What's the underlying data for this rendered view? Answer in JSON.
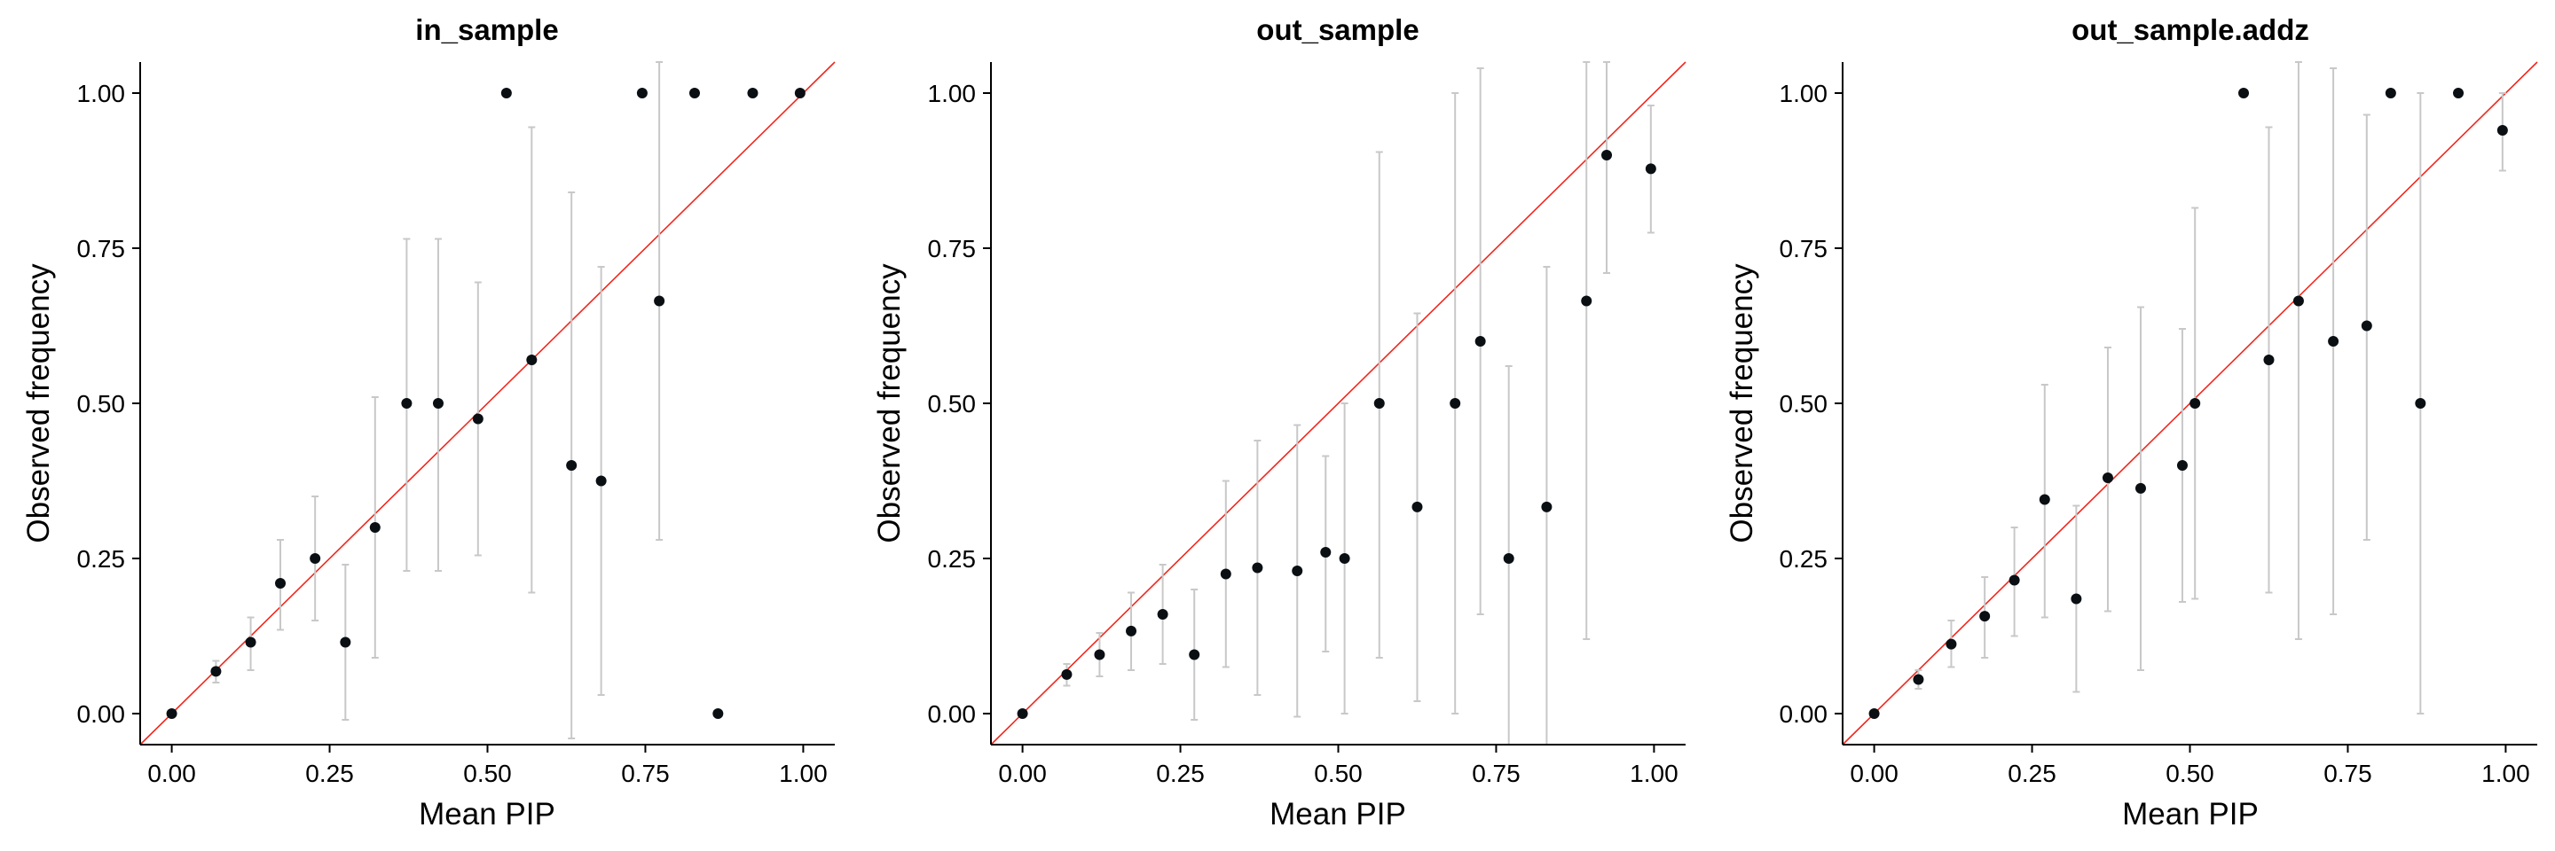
{
  "chart_data": [
    {
      "type": "scatter",
      "title": "in_sample",
      "xlabel": "Mean PIP",
      "ylabel": "Observed frequency",
      "xlim": [
        -0.05,
        1.05
      ],
      "ylim": [
        -0.05,
        1.05
      ],
      "xticks": [
        "0.00",
        "0.25",
        "0.50",
        "0.75",
        "1.00"
      ],
      "yticks": [
        "0.00",
        "0.25",
        "0.50",
        "0.75",
        "1.00"
      ],
      "reference_line": "y = x",
      "points": [
        {
          "x": 0.0,
          "y": 0.0,
          "lo": 0.0,
          "hi": 0.0
        },
        {
          "x": 0.07,
          "y": 0.068,
          "lo": 0.05,
          "hi": 0.085
        },
        {
          "x": 0.125,
          "y": 0.115,
          "lo": 0.07,
          "hi": 0.155
        },
        {
          "x": 0.172,
          "y": 0.21,
          "lo": 0.135,
          "hi": 0.28
        },
        {
          "x": 0.227,
          "y": 0.25,
          "lo": 0.15,
          "hi": 0.35
        },
        {
          "x": 0.275,
          "y": 0.115,
          "lo": -0.01,
          "hi": 0.24
        },
        {
          "x": 0.322,
          "y": 0.3,
          "lo": 0.09,
          "hi": 0.51
        },
        {
          "x": 0.372,
          "y": 0.5,
          "lo": 0.23,
          "hi": 0.765
        },
        {
          "x": 0.422,
          "y": 0.5,
          "lo": 0.23,
          "hi": 0.765
        },
        {
          "x": 0.485,
          "y": 0.475,
          "lo": 0.255,
          "hi": 0.695
        },
        {
          "x": 0.53,
          "y": 1.0,
          "lo": 1.0,
          "hi": 1.0
        },
        {
          "x": 0.57,
          "y": 0.57,
          "lo": 0.195,
          "hi": 0.945
        },
        {
          "x": 0.633,
          "y": 0.4,
          "lo": -0.04,
          "hi": 0.84
        },
        {
          "x": 0.68,
          "y": 0.375,
          "lo": 0.03,
          "hi": 0.72
        },
        {
          "x": 0.745,
          "y": 1.0,
          "lo": 1.0,
          "hi": 1.0
        },
        {
          "x": 0.772,
          "y": 0.665,
          "lo": 0.28,
          "hi": 1.05
        },
        {
          "x": 0.828,
          "y": 1.0,
          "lo": 1.0,
          "hi": 1.0
        },
        {
          "x": 0.865,
          "y": 0.0,
          "lo": 0.0,
          "hi": 0.0
        },
        {
          "x": 0.92,
          "y": 1.0,
          "lo": 1.0,
          "hi": 1.0
        },
        {
          "x": 0.995,
          "y": 1.0,
          "lo": 1.0,
          "hi": 1.0
        }
      ]
    },
    {
      "type": "scatter",
      "title": "out_sample",
      "xlabel": "Mean PIP",
      "ylabel": "Observed frequency",
      "xlim": [
        -0.05,
        1.05
      ],
      "ylim": [
        -0.05,
        1.05
      ],
      "xticks": [
        "0.00",
        "0.25",
        "0.50",
        "0.75",
        "1.00"
      ],
      "yticks": [
        "0.00",
        "0.25",
        "0.50",
        "0.75",
        "1.00"
      ],
      "reference_line": "y = x",
      "points": [
        {
          "x": 0.0,
          "y": 0.0,
          "lo": 0.0,
          "hi": 0.0
        },
        {
          "x": 0.07,
          "y": 0.063,
          "lo": 0.045,
          "hi": 0.08
        },
        {
          "x": 0.122,
          "y": 0.095,
          "lo": 0.06,
          "hi": 0.13
        },
        {
          "x": 0.172,
          "y": 0.133,
          "lo": 0.07,
          "hi": 0.195
        },
        {
          "x": 0.222,
          "y": 0.16,
          "lo": 0.08,
          "hi": 0.24
        },
        {
          "x": 0.272,
          "y": 0.095,
          "lo": -0.01,
          "hi": 0.2
        },
        {
          "x": 0.322,
          "y": 0.225,
          "lo": 0.075,
          "hi": 0.375
        },
        {
          "x": 0.372,
          "y": 0.235,
          "lo": 0.03,
          "hi": 0.44
        },
        {
          "x": 0.435,
          "y": 0.23,
          "lo": -0.005,
          "hi": 0.465
        },
        {
          "x": 0.48,
          "y": 0.26,
          "lo": 0.1,
          "hi": 0.415
        },
        {
          "x": 0.51,
          "y": 0.25,
          "lo": 0.0,
          "hi": 0.5
        },
        {
          "x": 0.565,
          "y": 0.5,
          "lo": 0.09,
          "hi": 0.905
        },
        {
          "x": 0.625,
          "y": 0.333,
          "lo": 0.02,
          "hi": 0.645
        },
        {
          "x": 0.685,
          "y": 0.5,
          "lo": 0.0,
          "hi": 1.0
        },
        {
          "x": 0.725,
          "y": 0.6,
          "lo": 0.16,
          "hi": 1.04
        },
        {
          "x": 0.77,
          "y": 0.25,
          "lo": -0.06,
          "hi": 0.56
        },
        {
          "x": 0.83,
          "y": 0.333,
          "lo": -0.05,
          "hi": 0.72
        },
        {
          "x": 0.893,
          "y": 0.665,
          "lo": 0.12,
          "hi": 1.05
        },
        {
          "x": 0.925,
          "y": 0.9,
          "lo": 0.71,
          "hi": 1.05
        },
        {
          "x": 0.995,
          "y": 0.878,
          "lo": 0.775,
          "hi": 0.98
        }
      ]
    },
    {
      "type": "scatter",
      "title": "out_sample.addz",
      "xlabel": "Mean PIP",
      "ylabel": "Observed frequency",
      "xlim": [
        -0.05,
        1.05
      ],
      "ylim": [
        -0.05,
        1.05
      ],
      "xticks": [
        "0.00",
        "0.25",
        "0.50",
        "0.75",
        "1.00"
      ],
      "yticks": [
        "0.00",
        "0.25",
        "0.50",
        "0.75",
        "1.00"
      ],
      "reference_line": "y = x",
      "points": [
        {
          "x": 0.0,
          "y": 0.0,
          "lo": 0.0,
          "hi": 0.0
        },
        {
          "x": 0.07,
          "y": 0.055,
          "lo": 0.04,
          "hi": 0.07
        },
        {
          "x": 0.122,
          "y": 0.112,
          "lo": 0.075,
          "hi": 0.15
        },
        {
          "x": 0.175,
          "y": 0.157,
          "lo": 0.09,
          "hi": 0.22
        },
        {
          "x": 0.222,
          "y": 0.215,
          "lo": 0.125,
          "hi": 0.3
        },
        {
          "x": 0.27,
          "y": 0.345,
          "lo": 0.155,
          "hi": 0.53
        },
        {
          "x": 0.32,
          "y": 0.185,
          "lo": 0.035,
          "hi": 0.335
        },
        {
          "x": 0.37,
          "y": 0.38,
          "lo": 0.165,
          "hi": 0.59
        },
        {
          "x": 0.422,
          "y": 0.363,
          "lo": 0.07,
          "hi": 0.655
        },
        {
          "x": 0.488,
          "y": 0.4,
          "lo": 0.18,
          "hi": 0.62
        },
        {
          "x": 0.508,
          "y": 0.5,
          "lo": 0.185,
          "hi": 0.815
        },
        {
          "x": 0.585,
          "y": 1.0,
          "lo": 1.0,
          "hi": 1.0
        },
        {
          "x": 0.625,
          "y": 0.57,
          "lo": 0.195,
          "hi": 0.945
        },
        {
          "x": 0.672,
          "y": 0.665,
          "lo": 0.12,
          "hi": 1.05
        },
        {
          "x": 0.727,
          "y": 0.6,
          "lo": 0.16,
          "hi": 1.04
        },
        {
          "x": 0.78,
          "y": 0.625,
          "lo": 0.28,
          "hi": 0.965
        },
        {
          "x": 0.818,
          "y": 1.0,
          "lo": 1.0,
          "hi": 1.0
        },
        {
          "x": 0.865,
          "y": 0.5,
          "lo": 0.0,
          "hi": 1.0
        },
        {
          "x": 0.925,
          "y": 1.0,
          "lo": 1.0,
          "hi": 1.0
        },
        {
          "x": 0.995,
          "y": 0.94,
          "lo": 0.875,
          "hi": 1.0
        }
      ]
    }
  ]
}
